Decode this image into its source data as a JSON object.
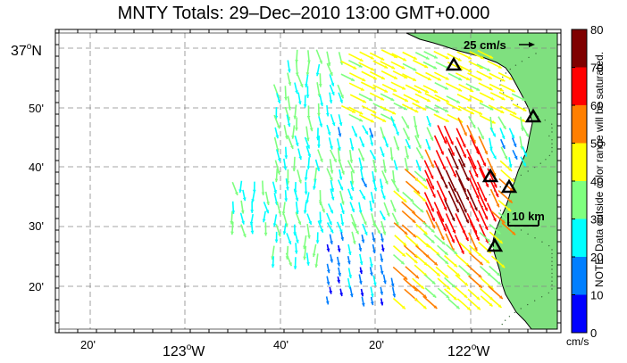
{
  "title": "MNTY Totals: 29–Dec–2010 13:00 GMT+0.000",
  "scale_label": "25 cm/s",
  "distance_label": "10 km",
  "lat_labels": [
    {
      "text": "37",
      "deg": true,
      "suffix": "N"
    },
    {
      "text": "50'"
    },
    {
      "text": "40'"
    },
    {
      "text": "30'"
    },
    {
      "text": "20'"
    }
  ],
  "lon_labels": [
    {
      "text": "20'"
    },
    {
      "text": "123",
      "deg": true,
      "suffix": "W"
    },
    {
      "text": "40'"
    },
    {
      "text": "20'"
    },
    {
      "text": "122",
      "deg": true,
      "suffix": "W"
    }
  ],
  "colorbar": {
    "ticks": [
      "80",
      "70",
      "60",
      "50",
      "40",
      "30",
      "20",
      "10",
      "0"
    ],
    "colors": [
      "#7f0000",
      "#ff0000",
      "#ff7f00",
      "#ffff00",
      "#7fff7f",
      "#00ffff",
      "#007fff",
      "#0000ff"
    ],
    "unit": "cm/s",
    "note": "NOTE: Data outside color range will be saturated."
  },
  "land_color": "#7fe07f",
  "station_icon": "triangle-station-icon"
}
